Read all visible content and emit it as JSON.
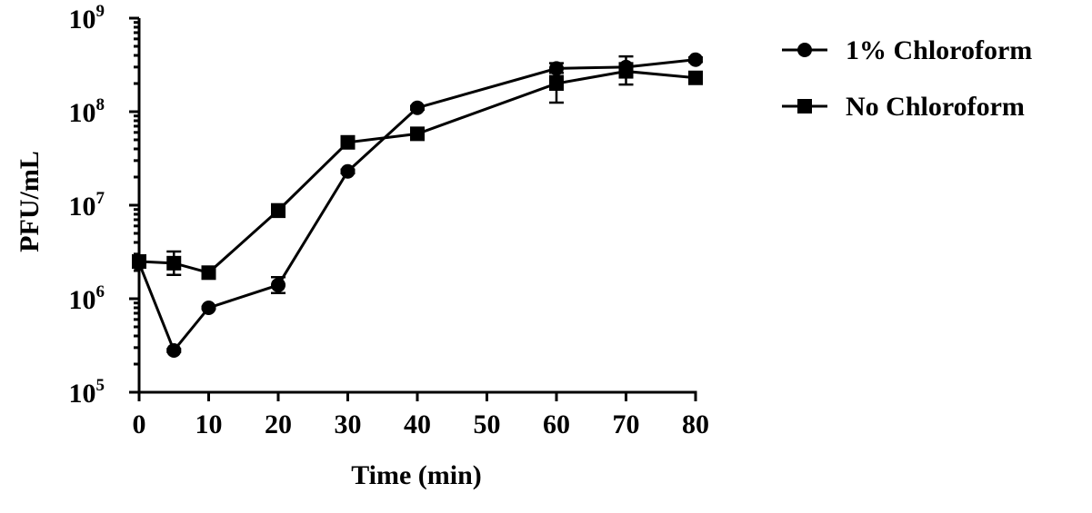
{
  "chart_data": {
    "type": "line",
    "xlabel": "Time (min)",
    "ylabel": "PFU/mL",
    "xlim": [
      0,
      80
    ],
    "ylim": [
      100000,
      1000000000
    ],
    "y_scale": "log",
    "x_ticks": [
      "0",
      "10",
      "20",
      "30",
      "40",
      "50",
      "60",
      "70",
      "80"
    ],
    "y_ticks": [
      {
        "base": "10",
        "exp": "5"
      },
      {
        "base": "10",
        "exp": "6"
      },
      {
        "base": "10",
        "exp": "7"
      },
      {
        "base": "10",
        "exp": "8"
      },
      {
        "base": "10",
        "exp": "9"
      }
    ],
    "legend_position": "top-right",
    "grid": false,
    "series": [
      {
        "name": "1% Chloroform",
        "marker": "circle",
        "points": [
          {
            "x": 0,
            "y": 2400000,
            "err_low": 2300000,
            "err_high": 2500000
          },
          {
            "x": 5,
            "y": 280000,
            "err_low": 270000,
            "err_high": 290000
          },
          {
            "x": 10,
            "y": 800000,
            "err_low": 780000,
            "err_high": 820000
          },
          {
            "x": 20,
            "y": 1400000,
            "err_low": 1150000,
            "err_high": 1700000
          },
          {
            "x": 30,
            "y": 23000000,
            "err_low": 22000000,
            "err_high": 24000000
          },
          {
            "x": 40,
            "y": 110000000,
            "err_low": 105000000,
            "err_high": 115000000
          },
          {
            "x": 60,
            "y": 290000000,
            "err_low": 240000000,
            "err_high": 330000000
          },
          {
            "x": 70,
            "y": 300000000,
            "err_low": 270000000,
            "err_high": 330000000
          },
          {
            "x": 80,
            "y": 360000000,
            "err_low": 340000000,
            "err_high": 380000000
          }
        ]
      },
      {
        "name": "No Chloroform",
        "marker": "square",
        "points": [
          {
            "x": 0,
            "y": 2500000,
            "err_low": 2400000,
            "err_high": 2600000
          },
          {
            "x": 5,
            "y": 2400000,
            "err_low": 1800000,
            "err_high": 3200000
          },
          {
            "x": 10,
            "y": 1900000,
            "err_low": 1800000,
            "err_high": 2000000
          },
          {
            "x": 20,
            "y": 8800000,
            "err_low": 7500000,
            "err_high": 10000000
          },
          {
            "x": 30,
            "y": 47000000,
            "err_low": 45000000,
            "err_high": 49000000
          },
          {
            "x": 40,
            "y": 58000000,
            "err_low": 55000000,
            "err_high": 61000000
          },
          {
            "x": 60,
            "y": 200000000,
            "err_low": 125000000,
            "err_high": 260000000
          },
          {
            "x": 70,
            "y": 270000000,
            "err_low": 195000000,
            "err_high": 390000000
          },
          {
            "x": 80,
            "y": 230000000,
            "err_low": 215000000,
            "err_high": 245000000
          }
        ]
      }
    ]
  }
}
